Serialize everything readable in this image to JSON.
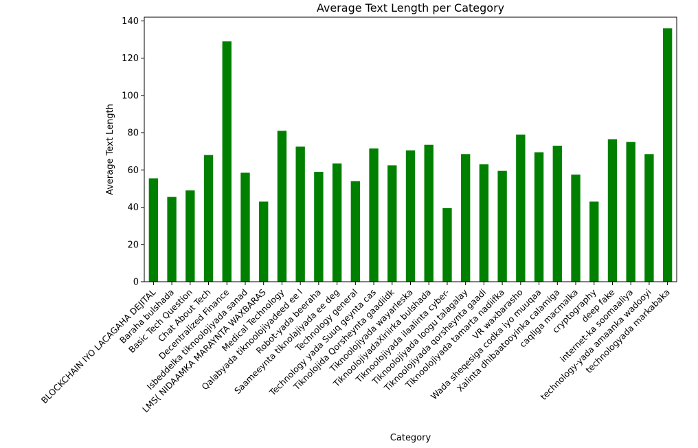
{
  "chart_data": {
    "type": "bar",
    "title": "Average Text Length per Category",
    "xlabel": "Category",
    "ylabel": "Average Text Length",
    "ylim": [
      0,
      142
    ],
    "yticks": [
      0,
      20,
      40,
      60,
      80,
      100,
      120,
      140
    ],
    "bar_color": "#008000",
    "grid": false,
    "legend": "none",
    "categories": [
      "BLOCKCHAIN IYO LACAGAHA DEJITAL",
      "Baraha bulshada",
      "Basic Tech Question",
      "Chat About Tech",
      "Decentralized Finance",
      "Isbeddelka tiknoolojiyada sanad",
      "LMS( NIDAAMKA MARAYNTA WAXBARAS",
      "Medical Technology",
      "Qalabyada tiknoolojiyadeed ee l",
      "Robot-yada beeraha",
      "Saameeynta tiknolajiyada ee deg",
      "Technology general",
      "Technology yada Suuq geynta cas",
      "Tiknolojida Qorsheynta gaadiidk",
      "Tiknoolojiyada wayarleska",
      "TiknoolojiyadaXiriirka bulshada",
      "Tiknoolojiyada ilaalinta cyber-",
      "Tiknoolojiyada loogu talagalay",
      "Tiknoolojiyada qorsheynta gaadi",
      "Tiknoolojiyada tamarta nadiifka",
      "VR waxbarasho",
      "Wada sheqesiga codka iyo muuqaa",
      "Xalinta dhibaatooyinka calamiga",
      "caqliga macmalka",
      "cryptography",
      "deep fake",
      "internet-ka soomaaliya",
      "technology-yada amaanka wadooyi",
      "technologyada markabaka"
    ],
    "values": [
      55.5,
      45.5,
      49,
      68,
      129,
      58.5,
      43,
      81,
      72.5,
      59,
      63.5,
      54,
      71.5,
      62.5,
      70.5,
      73.5,
      39.5,
      68.5,
      63,
      59.5,
      79,
      69.5,
      73,
      57.5,
      43,
      76.5,
      75,
      68.5,
      136
    ]
  }
}
